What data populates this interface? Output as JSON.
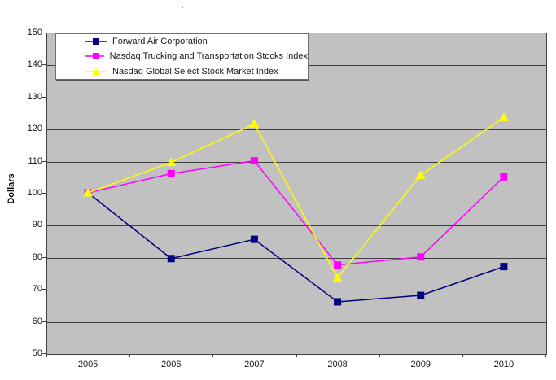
{
  "title": ".",
  "chart_data": {
    "type": "line",
    "x": [
      "2005",
      "2006",
      "2007",
      "2008",
      "2009",
      "2010"
    ],
    "series": [
      {
        "name": "Forward Air Corporation",
        "values": [
          100,
          79.5,
          85.5,
          66,
          68,
          77
        ],
        "color": "#000080",
        "marker": "square"
      },
      {
        "name": "Nasdaq Trucking and Transportation Stocks Index",
        "values": [
          100,
          106,
          110,
          77.5,
          80,
          105
        ],
        "color": "#ff00ff",
        "marker": "square"
      },
      {
        "name": "Nasdaq Global Select Stock Market Index",
        "values": [
          100,
          109.5,
          121.5,
          73.5,
          105.5,
          123.5
        ],
        "color": "#ffff00",
        "marker": "triangle"
      }
    ],
    "xlabel": "",
    "ylabel": "Dollars",
    "ylim": [
      50,
      150
    ],
    "yticks": [
      150,
      140,
      130,
      120,
      110,
      100,
      90,
      80,
      70,
      60,
      50
    ],
    "grid": true,
    "legend_position": "top-left",
    "plot_background": "#c1c1c1",
    "gridline_color": "#3f3f3f",
    "axis_color": "#3f3f3f"
  }
}
